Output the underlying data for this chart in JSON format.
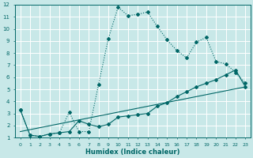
{
  "xlabel": "Humidex (Indice chaleur)",
  "bg_color": "#c8e8e8",
  "grid_color": "#ffffff",
  "line_color": "#006666",
  "xlim": [
    -0.5,
    23.5
  ],
  "ylim": [
    1,
    12
  ],
  "xticks": [
    0,
    1,
    2,
    3,
    4,
    5,
    6,
    7,
    8,
    9,
    10,
    11,
    12,
    13,
    14,
    15,
    16,
    17,
    18,
    19,
    20,
    21,
    22,
    23
  ],
  "yticks": [
    1,
    2,
    3,
    4,
    5,
    6,
    7,
    8,
    9,
    10,
    11,
    12
  ],
  "curve1_x": [
    0,
    1,
    2,
    3,
    4,
    5,
    6,
    7,
    8,
    9,
    10,
    11,
    12,
    13,
    14,
    15,
    16,
    17,
    18,
    19,
    20,
    21,
    22,
    23
  ],
  "curve1_y": [
    3.3,
    1.2,
    1.1,
    1.3,
    1.4,
    3.1,
    1.5,
    1.5,
    5.4,
    9.2,
    11.8,
    11.1,
    11.2,
    11.4,
    10.2,
    9.1,
    8.2,
    7.6,
    8.9,
    9.3,
    7.3,
    7.1,
    6.4,
    5.5
  ],
  "curve2_x": [
    0,
    1,
    2,
    3,
    4,
    5,
    6,
    7,
    8,
    9,
    10,
    11,
    12,
    13,
    14,
    15,
    16,
    17,
    18,
    19,
    20,
    21,
    22,
    23
  ],
  "curve2_y": [
    3.3,
    1.2,
    1.1,
    1.3,
    1.4,
    1.5,
    2.4,
    2.1,
    1.9,
    2.1,
    2.7,
    2.8,
    2.9,
    3.0,
    3.6,
    3.9,
    4.4,
    4.8,
    5.2,
    5.5,
    5.8,
    6.2,
    6.6,
    5.2
  ],
  "curve3_x": [
    0,
    23
  ],
  "curve3_y": [
    1.5,
    5.2
  ]
}
